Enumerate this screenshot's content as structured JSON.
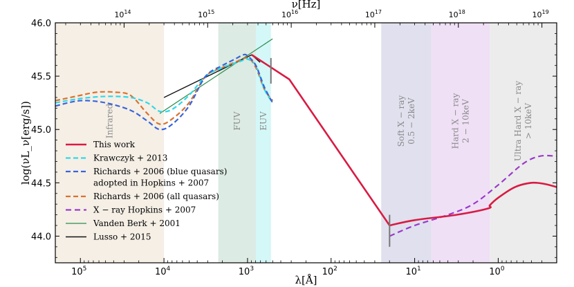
{
  "chart_data": {
    "type": "line",
    "xlabel": "λ[Å]",
    "x2label": "ν[Hz]",
    "ylabel": "log(νL_ν[erg/s])",
    "x_log_range": [
      5.3,
      -0.7
    ],
    "ylim": [
      43.75,
      46.0
    ],
    "y_ticks": [
      "44.0",
      "44.5",
      "45.0",
      "45.5",
      "46.0"
    ],
    "x_ticks": [
      {
        "v": 5,
        "base": "10",
        "exp": "5"
      },
      {
        "v": 4,
        "base": "10",
        "exp": "4"
      },
      {
        "v": 3,
        "base": "10",
        "exp": "3"
      },
      {
        "v": 2,
        "base": "10",
        "exp": "2"
      },
      {
        "v": 1,
        "base": "10",
        "exp": "1"
      },
      {
        "v": 0,
        "base": "10",
        "exp": "0"
      }
    ],
    "nu_ticks": [
      {
        "v": 14,
        "base": "10",
        "exp": "14"
      },
      {
        "v": 15,
        "base": "10",
        "exp": "15"
      },
      {
        "v": 16,
        "base": "10",
        "exp": "16"
      },
      {
        "v": 17,
        "base": "10",
        "exp": "17"
      },
      {
        "v": 18,
        "base": "10",
        "exp": "18"
      },
      {
        "v": 19,
        "base": "10",
        "exp": "19"
      }
    ],
    "bands": [
      {
        "name": "Infrared",
        "lines": [
          "Infrared"
        ],
        "from": 5.3,
        "to": 4.0,
        "color": "#f5efe6"
      },
      {
        "name": "FUV",
        "lines": [
          "FUV"
        ],
        "from": 3.35,
        "to": 2.9,
        "color": "#dcebe3"
      },
      {
        "name": "EUV",
        "lines": [
          "EUV"
        ],
        "from": 2.9,
        "to": 2.72,
        "color": "#d4f7f7"
      },
      {
        "name": "Soft X-ray",
        "lines": [
          "Soft X − ray",
          "0.5 − 2keV"
        ],
        "from": 1.4,
        "to": 0.8,
        "color": "#e0e0ee"
      },
      {
        "name": "Hard X-ray",
        "lines": [
          "Hard X − ray",
          "2 − 10keV"
        ],
        "from": 0.8,
        "to": 0.1,
        "color": "#efe0f6"
      },
      {
        "name": "Ultra Hard X-ray",
        "lines": [
          "Ultra Hard X − ray",
          "> 10keV"
        ],
        "from": 0.1,
        "to": -0.7,
        "color": "#ececec"
      }
    ],
    "series": [
      {
        "name": "This work",
        "label": "This work",
        "color": "#d81b43",
        "width": 2.6,
        "dash": "",
        "x": [
          2.95,
          2.5,
          1.3,
          1.0,
          0.5,
          0.12,
          0.1,
          0.0,
          -0.2,
          -0.4,
          -0.55,
          -0.7
        ],
        "y": [
          45.7,
          45.47,
          44.1,
          44.15,
          44.2,
          44.26,
          44.29,
          44.36,
          44.46,
          44.5,
          44.49,
          44.46
        ]
      },
      {
        "name": "Krawczyk 2013",
        "label": "Krawczyk + 2013",
        "color": "#2ed8e6",
        "width": 2.2,
        "dash": "7 4",
        "x": [
          5.3,
          5.0,
          4.7,
          4.4,
          4.2,
          4.05,
          3.9,
          3.7,
          3.5,
          3.3,
          3.15,
          3.05,
          3.0,
          2.9,
          2.8,
          2.7
        ],
        "y": [
          45.25,
          45.29,
          45.31,
          45.3,
          45.25,
          45.17,
          45.19,
          45.32,
          45.5,
          45.58,
          45.62,
          45.65,
          45.66,
          45.6,
          45.38,
          45.25
        ]
      },
      {
        "name": "Richards 2006 blue",
        "label": "Richards + 2006 (blue quasars)",
        "label2": "adopted in Hopkins + 2007",
        "color": "#3a64db",
        "width": 2.2,
        "dash": "7 4",
        "x": [
          5.3,
          5.0,
          4.7,
          4.4,
          4.2,
          4.05,
          3.9,
          3.7,
          3.5,
          3.3,
          3.15,
          3.05,
          3.0,
          2.9,
          2.8,
          2.7
        ],
        "y": [
          45.22,
          45.27,
          45.25,
          45.18,
          45.08,
          45.0,
          45.05,
          45.22,
          45.5,
          45.6,
          45.66,
          45.7,
          45.69,
          45.6,
          45.4,
          45.25
        ]
      },
      {
        "name": "Richards 2006 all",
        "label": "Richards + 2006 (all quasars)",
        "color": "#d9722e",
        "width": 2.2,
        "dash": "7 4",
        "x": [
          5.3,
          5.0,
          4.8,
          4.6,
          4.4,
          4.2,
          4.05,
          3.9,
          3.7,
          3.5,
          3.3,
          3.15,
          3.0,
          2.9,
          2.8,
          2.7
        ],
        "y": [
          45.27,
          45.32,
          45.35,
          45.35,
          45.32,
          45.15,
          45.05,
          45.1,
          45.25,
          45.5,
          45.58,
          45.63,
          45.67,
          45.58,
          45.38,
          45.27
        ]
      },
      {
        "name": "X-ray Hopkins 2007",
        "label": "X − ray Hopkins + 2007",
        "color": "#9a3acb",
        "width": 2.2,
        "dash": "8 5",
        "x": [
          1.3,
          1.0,
          0.6,
          0.3,
          0.0,
          -0.3,
          -0.5,
          -0.7
        ],
        "y": [
          44.0,
          44.1,
          44.2,
          44.3,
          44.48,
          44.68,
          44.75,
          44.75
        ]
      },
      {
        "name": "Vanden Berk 2001",
        "label": "Vanden Berk + 2001",
        "color": "#2a8a4a",
        "width": 1.2,
        "dash": "",
        "x": [
          4.05,
          2.7
        ],
        "y": [
          45.15,
          45.85
        ]
      },
      {
        "name": "Lusso 2015",
        "label": "Lusso + 2015",
        "color": "#111111",
        "width": 1.4,
        "dash": "",
        "x": [
          4.0,
          2.95,
          2.85
        ],
        "y": [
          45.3,
          45.7,
          45.63
        ]
      }
    ],
    "markers": [
      {
        "x": 2.72,
        "y1": 45.43,
        "y2": 45.67
      },
      {
        "x": 1.3,
        "y1": 43.9,
        "y2": 44.2
      }
    ]
  }
}
